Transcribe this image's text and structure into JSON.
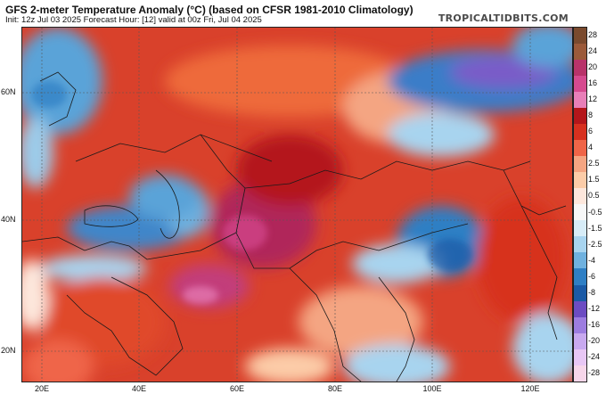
{
  "header": {
    "title": "GFS 2-meter Temperature Anomaly (°C) (based on CFSR 1981-2010 Climatology)",
    "subtitle": "Init: 12z Jul 03 2025   Forecast Hour: [12]   valid at 00z Fri, Jul 04 2025",
    "brand": "TROPICALTIDBITS.COM"
  },
  "map": {
    "lat_labels": [
      "60N",
      "40N",
      "20N"
    ],
    "lon_labels": [
      "20E",
      "40E",
      "60E",
      "80E",
      "100E",
      "120E"
    ]
  },
  "colorbar": {
    "labels": [
      "28",
      "24",
      "20",
      "16",
      "12",
      "8",
      "6",
      "4",
      "2.5",
      "1.5",
      "0.5",
      "-0.5",
      "-1.5",
      "-2.5",
      "-4",
      "-6",
      "-8",
      "-12",
      "-16",
      "-20",
      "-24",
      "-28"
    ],
    "colors": [
      "#7a4a2e",
      "#9b5a3a",
      "#b8336a",
      "#d54a8f",
      "#e87fb8",
      "#b4161b",
      "#d7301f",
      "#ef6548",
      "#f4a582",
      "#fccca8",
      "#fde7dc",
      "#f7f7f7",
      "#d7ecf7",
      "#a8d4ef",
      "#6fb1df",
      "#2f7fc4",
      "#1b5aa6",
      "#6c4cc2",
      "#9d7de0",
      "#c8a9ef",
      "#e8c7f5",
      "#f7d6ea"
    ]
  }
}
